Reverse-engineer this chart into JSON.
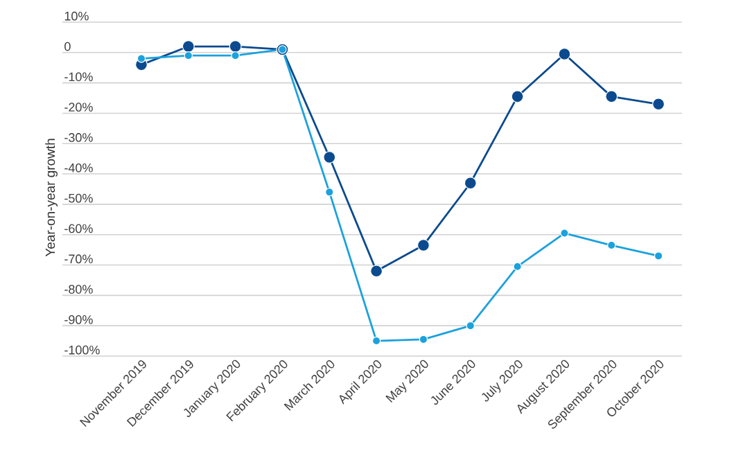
{
  "chart_data": {
    "type": "line",
    "ylabel": "Year-on-year growth",
    "categories": [
      "November 2019",
      "December 2019",
      "January 2020",
      "February 2020",
      "March 2020",
      "April 2020",
      "May 2020",
      "June 2020",
      "July 2020",
      "August 2020",
      "September 2020",
      "October 2020"
    ],
    "series": [
      {
        "color": "#0b4a8e",
        "values": [
          -4,
          2,
          2,
          1,
          -34.5,
          -72,
          -63.5,
          -43,
          -14.5,
          -0.5,
          -14.5,
          -17
        ]
      },
      {
        "color": "#1ba1dd",
        "values": [
          -2,
          -1,
          -1,
          1,
          -46,
          -95,
          -94.5,
          -90,
          -70.5,
          -59.5,
          -63.5,
          -67
        ]
      }
    ],
    "ylim": [
      -100,
      10
    ],
    "yticks": [
      {
        "value": 10,
        "label": "10%"
      },
      0,
      {
        "value": -10,
        "label": "-10%"
      },
      {
        "value": -20,
        "label": "-20%"
      },
      {
        "value": -30,
        "label": "-30%"
      },
      {
        "value": -40,
        "label": "-40%"
      },
      {
        "value": -50,
        "label": "-50%"
      },
      {
        "value": -60,
        "label": "-60%"
      },
      {
        "value": -70,
        "label": "-70%"
      },
      {
        "value": -80,
        "label": "-80%"
      },
      {
        "value": -90,
        "label": "-90%"
      },
      {
        "value": -100,
        "label": "-100%"
      }
    ],
    "grid": "y",
    "marker": "circle",
    "line_style": "solid"
  }
}
